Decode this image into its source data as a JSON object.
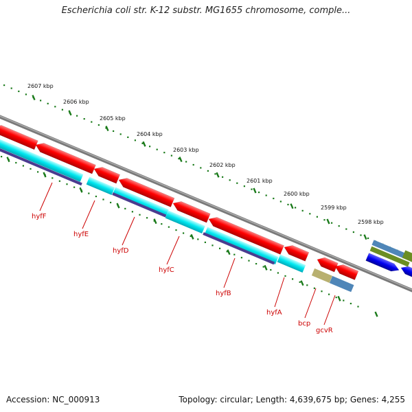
{
  "title": "Escherichia coli str. K-12 substr. MG1655 chromosome, comple...",
  "footer": {
    "accession": "Accession: NC_000913",
    "topology": "Topology: circular; Length: 4,639,675 bp; Genes: 4,255"
  },
  "ruler": {
    "unit": "kbp",
    "ticks": [
      {
        "label": "2607 kbp"
      },
      {
        "label": "2606 kbp"
      },
      {
        "label": "2605 kbp"
      },
      {
        "label": "2604 kbp"
      },
      {
        "label": "2603 kbp"
      },
      {
        "label": "2602 kbp"
      },
      {
        "label": "2601 kbp"
      },
      {
        "label": "2600 kbp"
      },
      {
        "label": "2599 kbp"
      },
      {
        "label": "2598 kbp"
      }
    ]
  },
  "genes": [
    {
      "name": "hyfF"
    },
    {
      "name": "hyfE"
    },
    {
      "name": "hyfD"
    },
    {
      "name": "hyfC"
    },
    {
      "name": "hyfB"
    },
    {
      "name": "hyfA"
    },
    {
      "name": "bcp"
    },
    {
      "name": "gcvR"
    }
  ],
  "colors": {
    "cds": "#ff0000",
    "gene": "#00e5ee",
    "feature": "#4b3b8f",
    "backbone": "#8c8c8c",
    "ruler": "#1a7a1a",
    "label": "#cc0000",
    "khaki": "#b8b070",
    "steelblue": "#4f86b8",
    "olive": "#6b8e23",
    "blue": "#0000ee"
  }
}
